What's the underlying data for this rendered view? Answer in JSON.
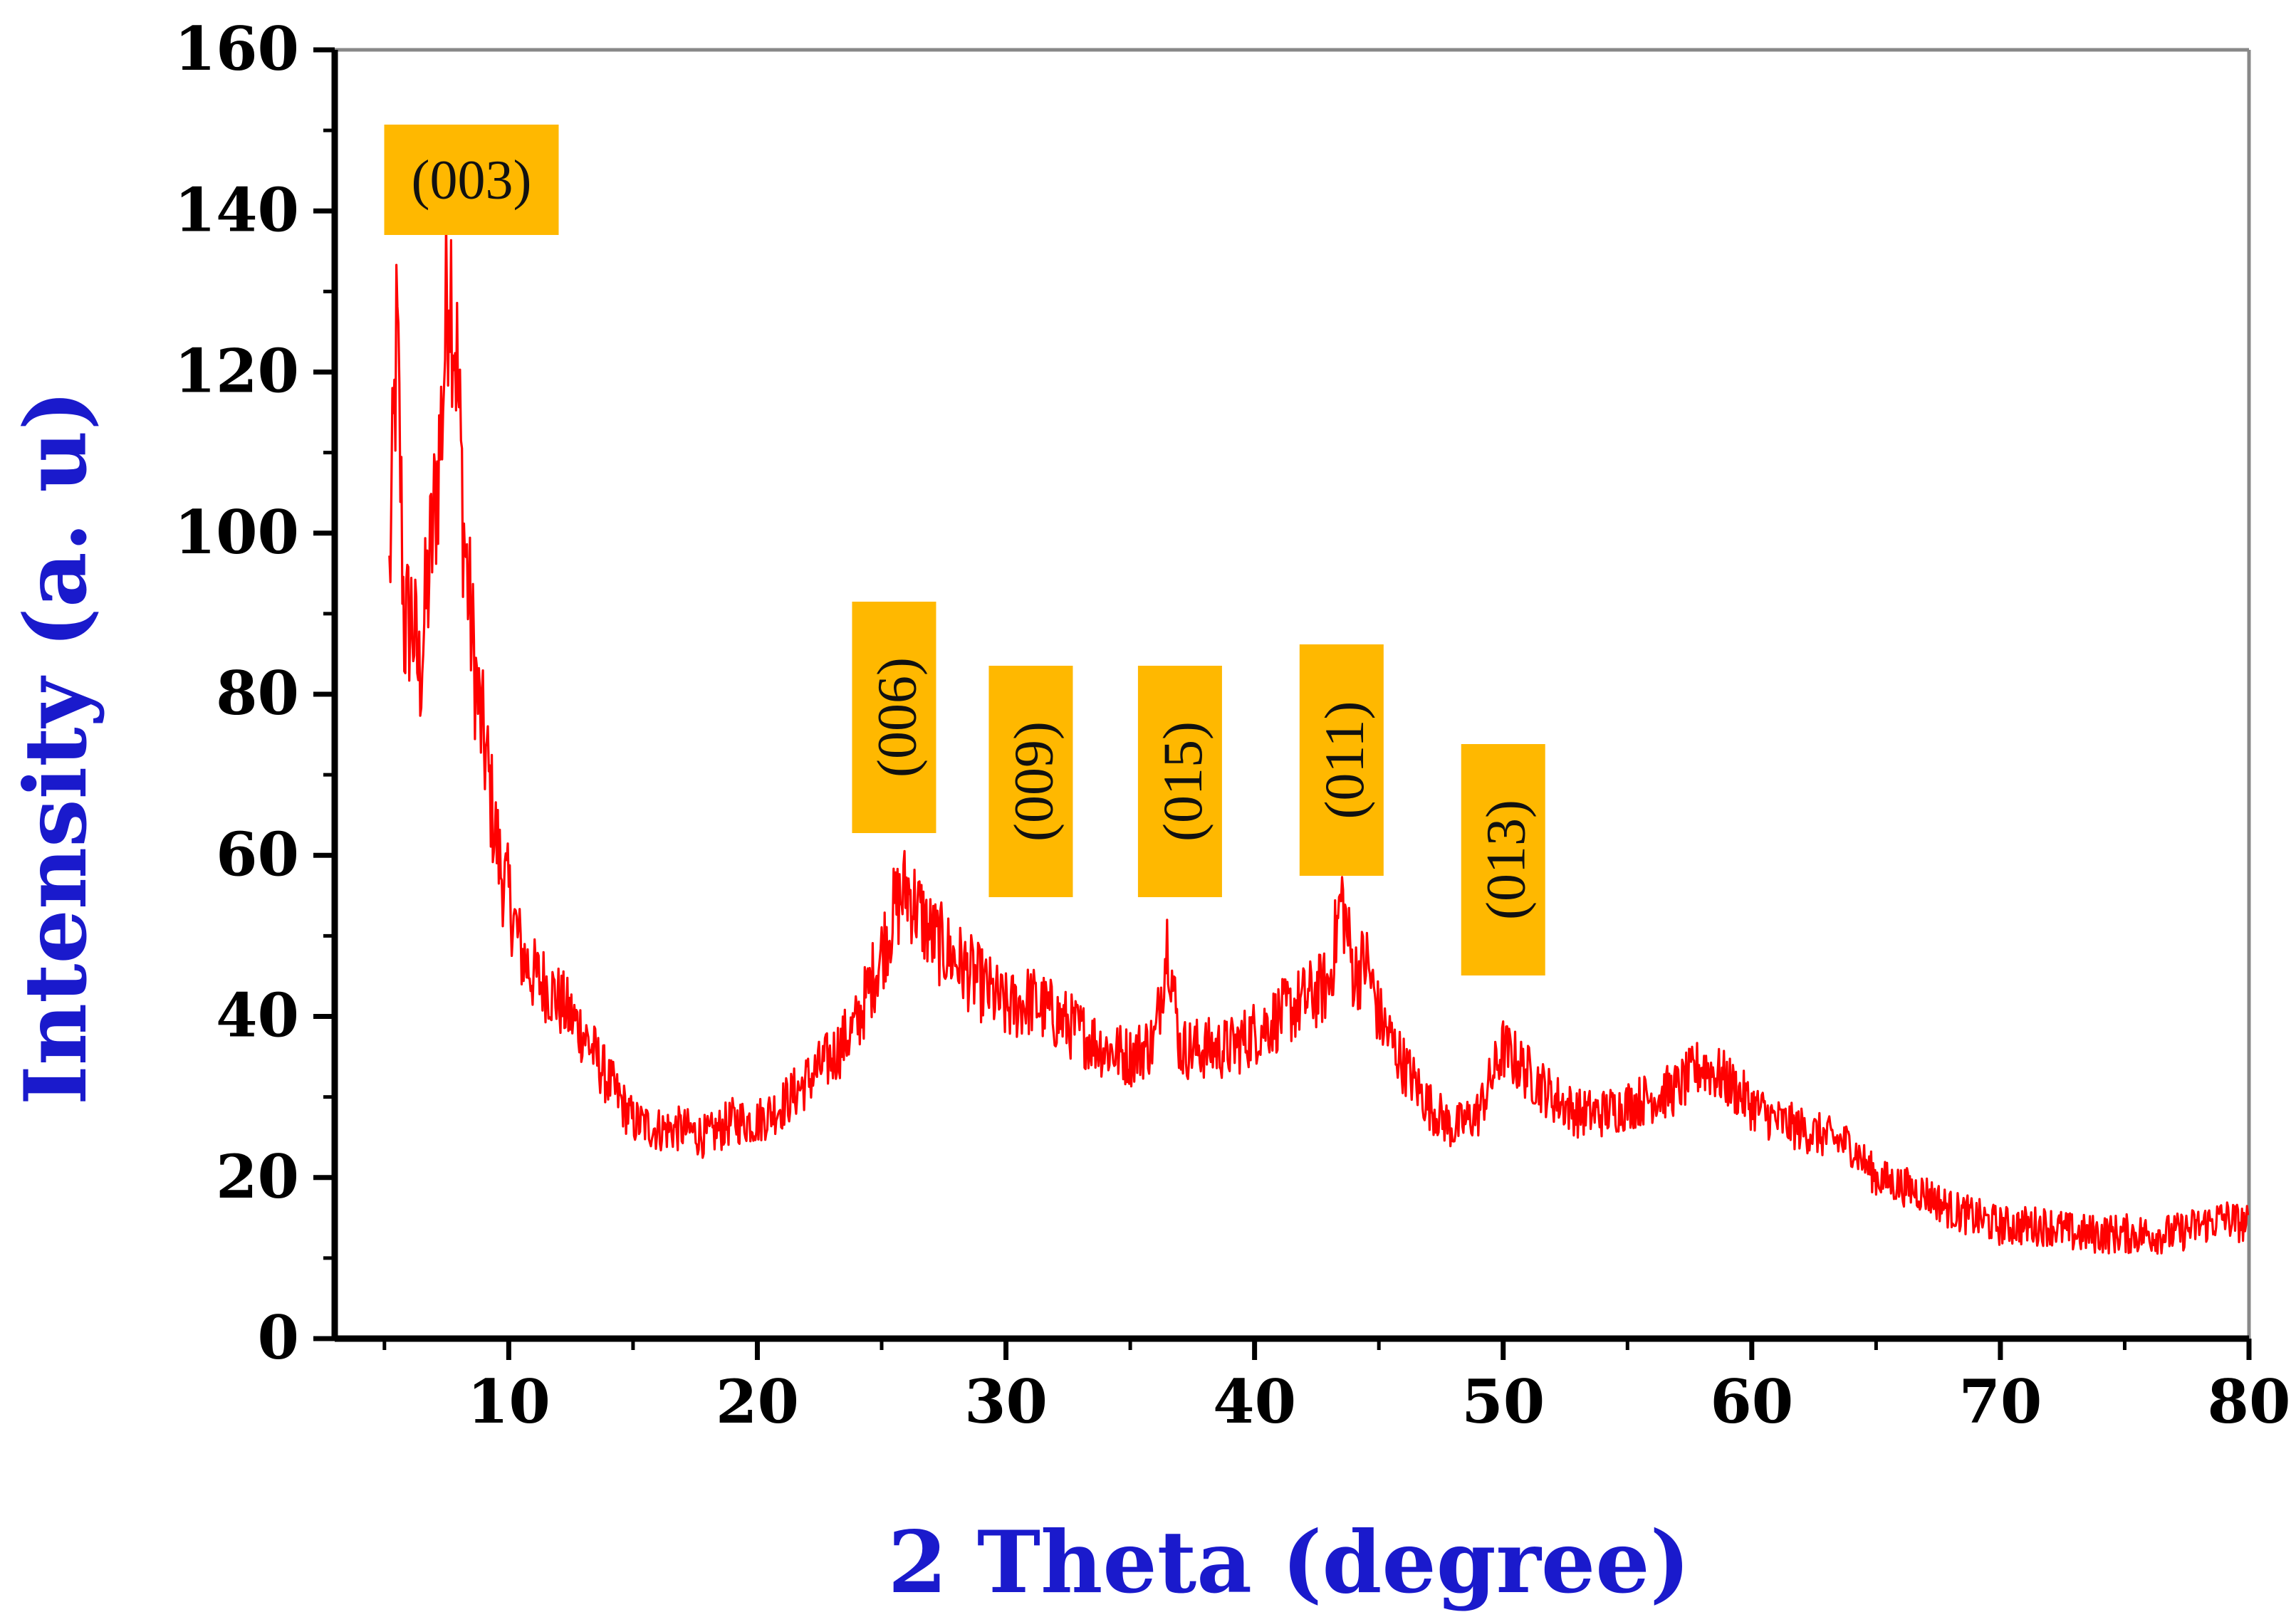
{
  "chart_data": {
    "type": "line",
    "title": "",
    "xlabel": "2 Theta (degree)",
    "ylabel": "Intensity (a. u)",
    "xlim": [
      3,
      80
    ],
    "ylim": [
      0,
      160
    ],
    "x_ticks": [
      10,
      20,
      30,
      40,
      50,
      60,
      70,
      80
    ],
    "y_ticks": [
      0,
      20,
      40,
      60,
      80,
      100,
      120,
      140,
      160
    ],
    "grid": false,
    "legend": "none",
    "colors": {
      "series": "#ff0000",
      "axis_title": "#1a1acc",
      "label_box": "#ffb800",
      "axis": "#000000"
    },
    "series": [
      {
        "x": [
          5.2,
          5.5,
          5.8,
          6.1,
          6.4,
          6.7,
          7.0,
          7.3,
          7.6,
          7.9,
          8.2,
          8.5,
          8.8,
          9.1,
          9.4,
          9.7,
          10.0,
          10.5,
          11.0,
          11.5,
          12.0,
          13.0,
          14.0,
          15.0,
          16.0,
          17.0,
          18.0,
          19.0,
          20.0,
          21.0,
          22.0,
          23.0,
          24.0,
          25.0,
          25.5,
          26.0,
          26.5,
          27.0,
          28.0,
          29.0,
          30.0,
          31.0,
          32.0,
          33.0,
          34.0,
          35.0,
          36.0,
          36.5,
          37.0,
          38.0,
          39.0,
          40.0,
          41.0,
          42.0,
          43.0,
          43.5,
          44.0,
          44.5,
          45.0,
          46.0,
          47.0,
          48.0,
          49.0,
          50.0,
          51.0,
          52.0,
          53.0,
          54.0,
          55.0,
          56.0,
          57.0,
          58.0,
          59.0,
          60.0,
          61.0,
          62.0,
          63.0,
          64.0,
          65.0,
          66.0,
          67.0,
          68.0,
          69.0,
          70.0,
          71.0,
          72.0,
          73.0,
          74.0,
          75.0,
          76.0,
          77.0,
          78.0,
          79.0,
          80.0
        ],
        "y": [
          94,
          125,
          88,
          90,
          82,
          92,
          102,
          114,
          135,
          122,
          100,
          88,
          78,
          72,
          64,
          58,
          55,
          48,
          45,
          44,
          42,
          38,
          32,
          27,
          26,
          26,
          25,
          27,
          27,
          29,
          32,
          35,
          39,
          48,
          53,
          56,
          53,
          50,
          47,
          44,
          41,
          42,
          40,
          38,
          36,
          35,
          37,
          50,
          36,
          36,
          36,
          38,
          40,
          42,
          44,
          55,
          45,
          47,
          40,
          34,
          29,
          26,
          28,
          36,
          33,
          30,
          28,
          28,
          29,
          30,
          31,
          34,
          32,
          29,
          27,
          26,
          25,
          24,
          20,
          19,
          18,
          16,
          15,
          14,
          14,
          14,
          13,
          13,
          13,
          13,
          13,
          14,
          15,
          14
        ]
      }
    ],
    "annotations": [
      {
        "text": "(003)",
        "x": 8.5,
        "orientation": "horizontal"
      },
      {
        "text": "(006)",
        "x": 25.5,
        "orientation": "vertical"
      },
      {
        "text": "(009)",
        "x": 31.0,
        "orientation": "vertical"
      },
      {
        "text": "(015)",
        "x": 37.0,
        "orientation": "vertical"
      },
      {
        "text": "(011)",
        "x": 43.5,
        "orientation": "vertical"
      },
      {
        "text": "(013)",
        "x": 50.0,
        "orientation": "vertical"
      }
    ]
  }
}
